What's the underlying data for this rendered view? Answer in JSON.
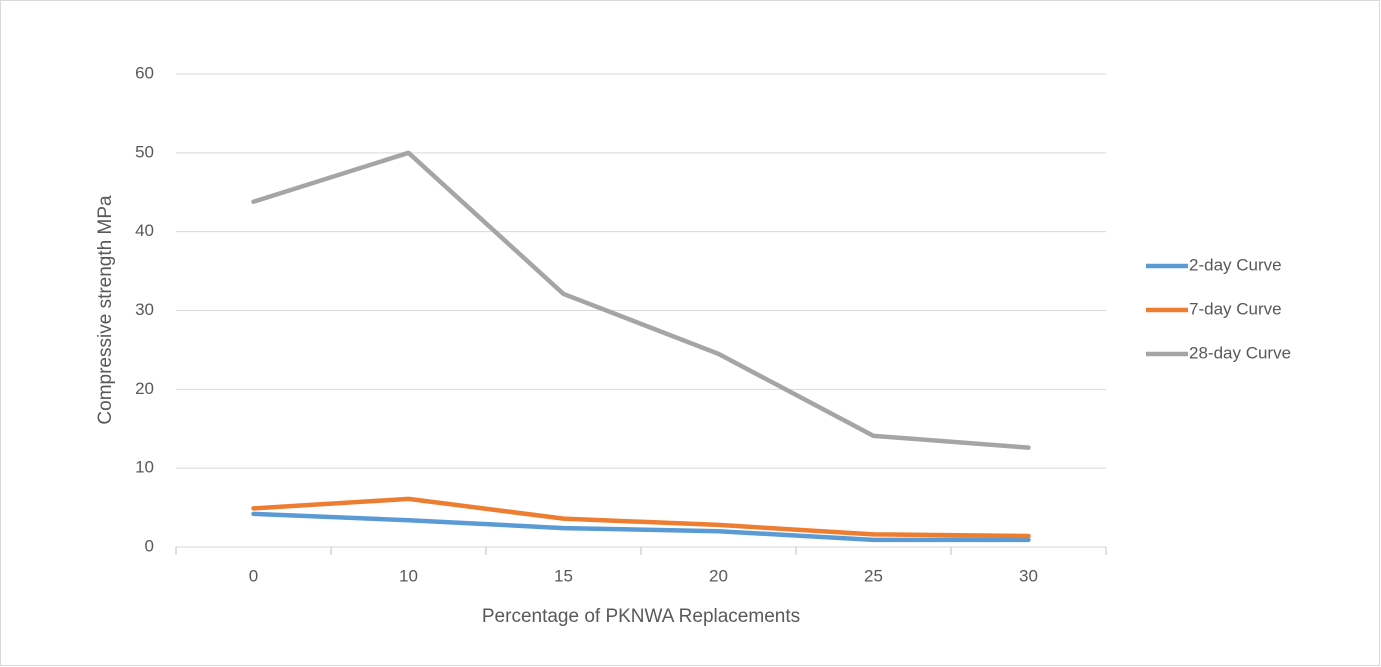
{
  "chart_data": {
    "type": "line",
    "x_label": "Percentage of PKNWA Replacements",
    "y_label": "Compressive strength MPa",
    "categories": [
      "0",
      "10",
      "15",
      "20",
      "25",
      "30"
    ],
    "series": [
      {
        "name": "2-day Curve",
        "color": "#5b9bd5",
        "values": [
          4.2,
          3.4,
          2.4,
          2.0,
          0.9,
          0.9
        ]
      },
      {
        "name": "7-day Curve",
        "color": "#ed7d31",
        "values": [
          4.9,
          6.1,
          3.6,
          2.8,
          1.6,
          1.4
        ]
      },
      {
        "name": "28-day Curve",
        "color": "#a5a5a5",
        "values": [
          43.8,
          50,
          32.1,
          24.5,
          14.1,
          12.6
        ]
      }
    ],
    "ylim": [
      0,
      60
    ],
    "yticks": [
      0,
      10,
      20,
      30,
      40,
      50,
      60
    ],
    "grid": true,
    "legend": "right"
  }
}
